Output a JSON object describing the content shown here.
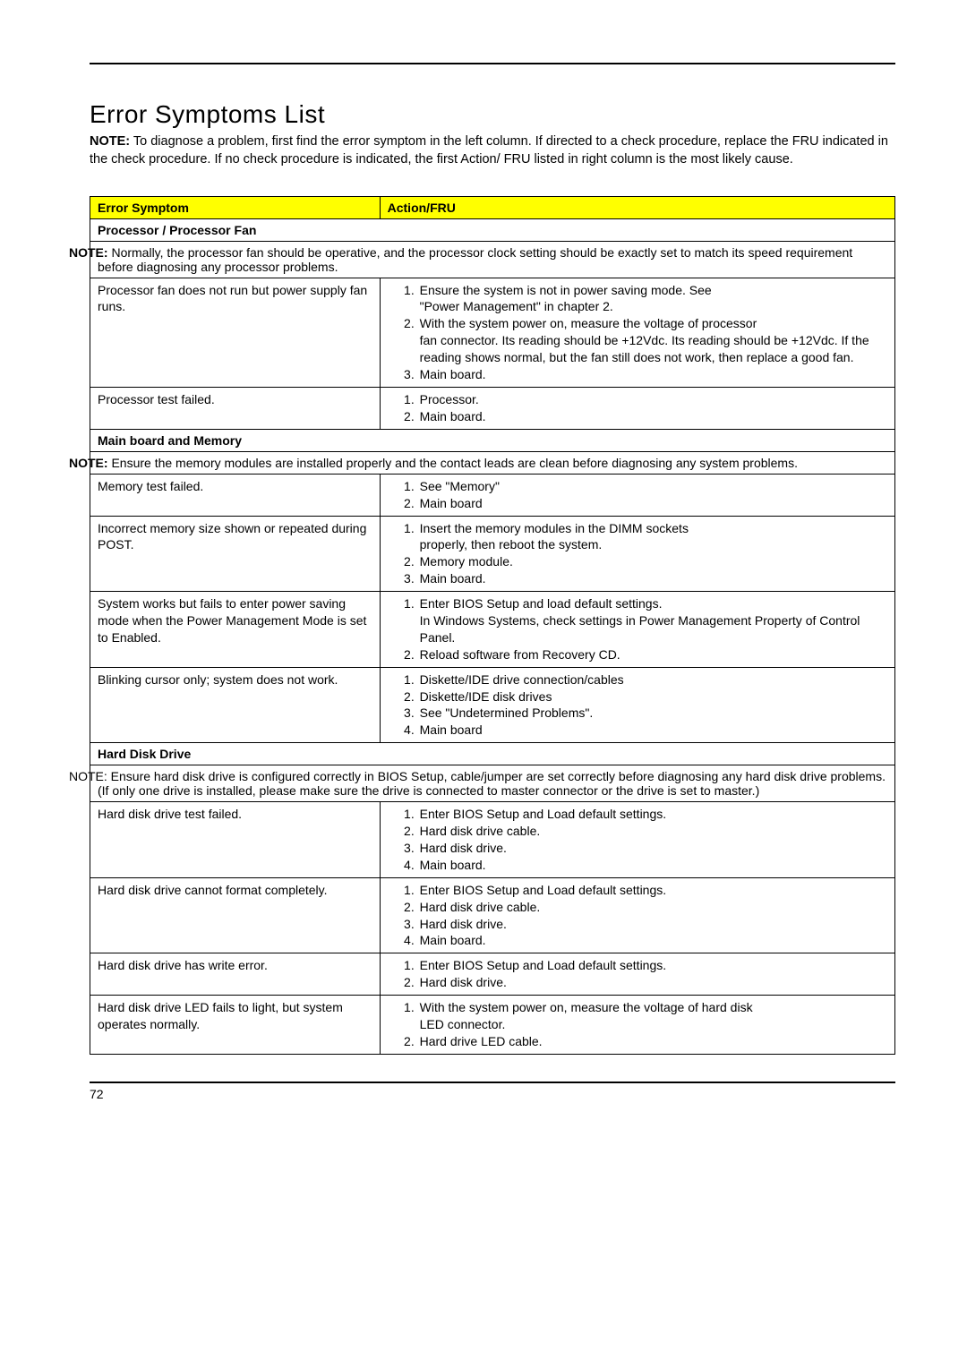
{
  "title": "Error Symptoms List",
  "intro_label": "NOTE:",
  "intro_text": " To diagnose a problem, first find the error symptom in the left column. If directed to a check procedure, replace the FRU indicated in the check procedure. If no check procedure is indicated, the first Action/ FRU listed in right column is the most likely cause.",
  "header_left": "Error Symptom",
  "header_right": "Action/FRU",
  "sections": {
    "proc": "Processor / Processor Fan",
    "proc_note_label": "NOTE:",
    "proc_note": " Normally, the processor fan should be operative, and the processor clock setting should be exactly set to match its speed requirement before diagnosing any processor problems.",
    "mem": "Main board and Memory",
    "mem_note_label": "NOTE:",
    "mem_note": " Ensure the memory modules are installed properly and the contact leads are clean before diagnosing any system problems.",
    "hdd": "Hard Disk Drive",
    "hdd_note_label": "NOTE:",
    "hdd_note": " Ensure hard disk drive is configured correctly in BIOS Setup, cable/jumper are set correctly before diagnosing any hard disk drive problems. (If only one drive is installed, please make sure the drive is connected to master connector or the drive is set to master.)"
  },
  "rows": {
    "r1_sym": "Processor fan does not run but power supply fan runs.",
    "r1_a1a": "Ensure the system is not in power saving mode. See",
    "r1_a1b": "\"Power Management\" in chapter 2.",
    "r1_a2a": "With the system power on, measure the voltage of processor",
    "r1_a2b": "fan connector. Its reading should be +12Vdc. Its reading should be +12Vdc. If the reading shows normal, but the fan still does not work, then replace a good fan.",
    "r1_a3": "Main board.",
    "r2_sym": "Processor test failed.",
    "r2_a1": "Processor.",
    "r2_a2": "Main board.",
    "r3_sym": "Memory test failed.",
    "r3_a1": "See \"Memory\"",
    "r3_a2": "Main board",
    "r4_sym": "Incorrect memory size shown or repeated during POST.",
    "r4_a1a": "Insert the memory modules in the DIMM sockets",
    "r4_a1b": "properly, then reboot the system.",
    "r4_a2": "Memory module.",
    "r4_a3": "Main board.",
    "r5_sym": "System works but fails to enter power saving mode when the Power Management Mode is set to Enabled.",
    "r5_a1a": "Enter BIOS Setup and load default settings.",
    "r5_a1b": "In Windows Systems, check settings in Power Management Property of Control Panel.",
    "r5_a2": "Reload software from Recovery CD.",
    "r6_sym": "Blinking cursor only; system does not work.",
    "r6_a1": "Diskette/IDE drive connection/cables",
    "r6_a2": "Diskette/IDE disk drives",
    "r6_a3": "See \"Undetermined Problems\".",
    "r6_a4": "Main board",
    "r7_sym": "Hard disk drive test failed.",
    "r7_a1": "Enter BIOS Setup and Load default settings.",
    "r7_a2": "Hard disk drive cable.",
    "r7_a3": "Hard disk drive.",
    "r7_a4": "Main board.",
    "r8_sym": "Hard disk drive cannot format completely.",
    "r8_a1": "Enter BIOS Setup and Load default settings.",
    "r8_a2": "Hard disk drive cable.",
    "r8_a3": "Hard disk drive.",
    "r8_a4": "Main board.",
    "r9_sym": "Hard disk drive has write error.",
    "r9_a1": "Enter BIOS Setup and Load default settings.",
    "r9_a2": "Hard disk drive.",
    "r10_sym": "Hard disk drive LED fails to light, but system operates normally.",
    "r10_a1a": "With the system power on, measure the voltage of hard disk",
    "r10_a1b": "LED connector.",
    "r10_a2": "Hard drive LED cable."
  },
  "page_number": "72"
}
